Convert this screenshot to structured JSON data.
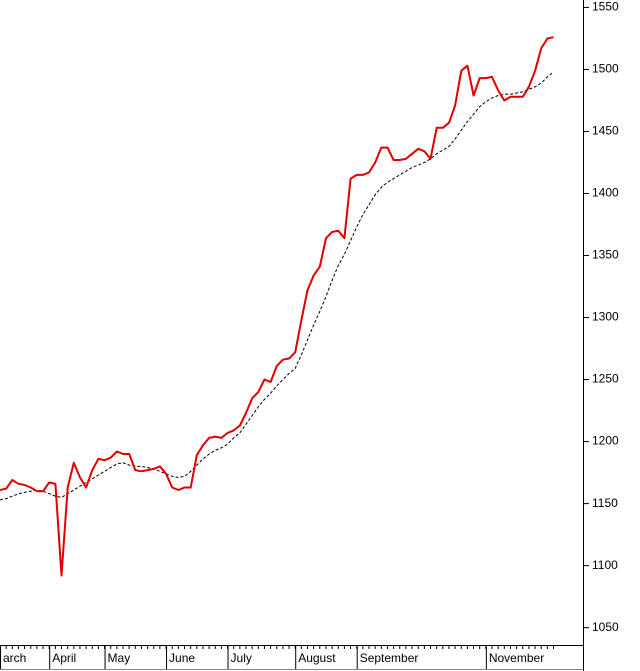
{
  "chart_data": {
    "type": "line",
    "categories": [
      "arch",
      null,
      null,
      null,
      null,
      null,
      null,
      null,
      "April",
      null,
      null,
      null,
      null,
      null,
      null,
      null,
      null,
      "May",
      null,
      null,
      null,
      null,
      null,
      null,
      null,
      null,
      null,
      "June",
      null,
      null,
      null,
      null,
      null,
      null,
      null,
      null,
      null,
      "July",
      null,
      null,
      null,
      null,
      null,
      null,
      null,
      null,
      null,
      null,
      "August",
      null,
      null,
      null,
      null,
      null,
      null,
      null,
      null,
      null,
      "September",
      null,
      null,
      null,
      null,
      null,
      null,
      null,
      null,
      null,
      null,
      null,
      null,
      null,
      null,
      null,
      null,
      null,
      null,
      null,
      null,
      "November",
      null,
      null,
      null,
      null,
      null,
      null,
      null,
      null,
      null,
      null,
      null
    ],
    "series": [
      {
        "color": "#e00000",
        "line_style": "solid",
        "values": [
          1161,
          1162,
          1169,
          1166,
          1165,
          1163,
          1160,
          1160,
          1167,
          1166,
          1092,
          1163,
          1183,
          1171,
          1163,
          1177,
          1186,
          1185,
          1187,
          1192,
          1190,
          1190,
          1177,
          1176,
          1177,
          1178,
          1180,
          1174,
          1163,
          1161,
          1163,
          1163,
          1189,
          1197,
          1203,
          1204,
          1203,
          1207,
          1209,
          1213,
          1223,
          1235,
          1240,
          1250,
          1248,
          1261,
          1266,
          1267,
          1272,
          1298,
          1322,
          1334,
          1341,
          1364,
          1369,
          1370,
          1364,
          1412,
          1415,
          1415,
          1417,
          1425,
          1437,
          1437,
          1427,
          1427,
          1428,
          1432,
          1436,
          1434,
          1428,
          1453,
          1453,
          1457,
          1471,
          1499,
          1503,
          1479,
          1493,
          1493,
          1494,
          1483,
          1475,
          1478,
          1478,
          1478,
          1486,
          1499,
          1517,
          1525,
          1526
        ]
      },
      {
        "color": "#000000",
        "line_style": "dashed",
        "values": [
          1153,
          1154,
          1156,
          1158,
          1159,
          1160,
          1161,
          1160,
          1158,
          1156,
          1155,
          1158,
          1161,
          1164,
          1167,
          1170,
          1173,
          1176,
          1179,
          1182,
          1183,
          1181,
          1180,
          1180,
          1179,
          1178,
          1176,
          1174,
          1172,
          1171,
          1172,
          1176,
          1181,
          1186,
          1190,
          1193,
          1195,
          1198,
          1203,
          1207,
          1214,
          1221,
          1228,
          1234,
          1239,
          1245,
          1250,
          1255,
          1259,
          1270,
          1282,
          1294,
          1305,
          1317,
          1330,
          1342,
          1351,
          1362,
          1373,
          1383,
          1391,
          1399,
          1405,
          1409,
          1412,
          1415,
          1418,
          1421,
          1423,
          1425,
          1428,
          1432,
          1435,
          1438,
          1444,
          1451,
          1458,
          1464,
          1470,
          1474,
          1477,
          1479,
          1480,
          1480,
          1481,
          1482,
          1484,
          1486,
          1489,
          1494,
          1498
        ]
      }
    ],
    "ylim": [
      1036,
      1556
    ],
    "yticks": [
      1050,
      1100,
      1150,
      1200,
      1250,
      1300,
      1350,
      1400,
      1450,
      1500,
      1550
    ],
    "y_axis_side": "right",
    "grid": false
  }
}
